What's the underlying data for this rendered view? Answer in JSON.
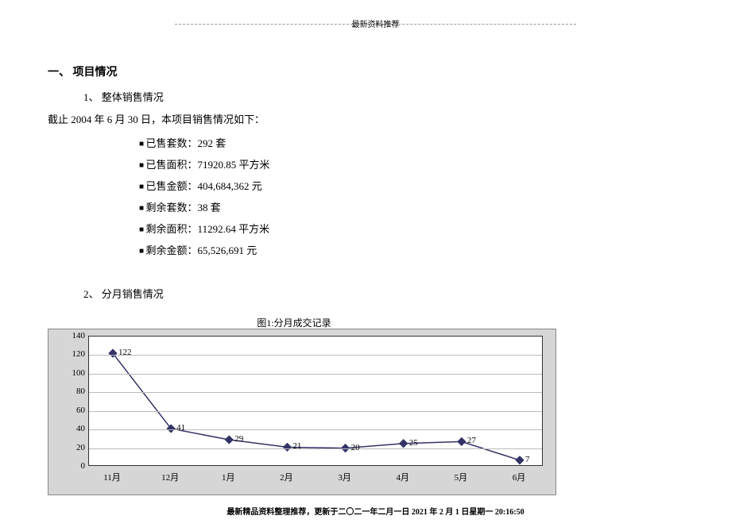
{
  "header": "最新资料推荐",
  "section1_title": "一、  项目情况",
  "sub1": "1、  整体销售情况",
  "intro": "截止 2004 年 6 月 30 日，本项目销售情况如下：",
  "bullets": [
    "已售套数：292 套",
    "已售面积：71920.85 平方米",
    "已售金额：404,684,362 元",
    "剩余套数：38 套",
    "剩余面积：11292.64 平方米",
    "剩余金额：65,526,691 元"
  ],
  "sub2": "2、  分月销售情况",
  "chart": {
    "title": "图1:分月成交记录",
    "type": "line",
    "background_color": "#d6d6d6",
    "plot_background": "#ffffff",
    "grid_color": "#bbbbbb",
    "line_color": "#333366",
    "marker": "diamond",
    "marker_size": 7,
    "ylim": [
      0,
      140
    ],
    "ytick_step": 20,
    "yticks": [
      0,
      20,
      40,
      60,
      80,
      100,
      120,
      140
    ],
    "categories": [
      "11月",
      "12月",
      "1月",
      "2月",
      "3月",
      "4月",
      "5月",
      "6月"
    ],
    "values": [
      122,
      41,
      29,
      21,
      20,
      25,
      27,
      7
    ],
    "label_fontsize": 11,
    "title_fontsize": 12
  },
  "footer": "最新精品资料整理推荐，更新于二〇二一年二月一日 2021 年 2 月 1 日星期一 20:16:50"
}
